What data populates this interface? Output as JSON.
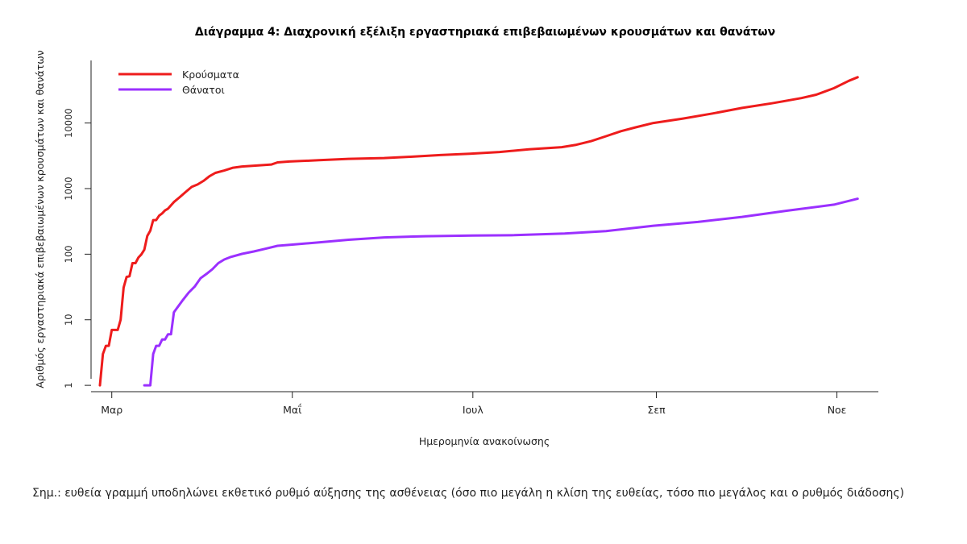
{
  "chart_data": {
    "type": "line",
    "title": "Διάγραμμα 4: Διαχρονική εξέλιξη εργαστηριακά επιβεβαιωμένων κρουσμάτων και θανάτων",
    "xlabel": "Ημερομηνία ανακοίνωσης",
    "ylabel": "Αριθμός εργαστηριακά επιβεβαιωμένων κρουσμάτων και θανάτων",
    "y_scale": "log",
    "ylim": [
      0.8,
      90000
    ],
    "yticks": [
      1,
      10,
      100,
      1000,
      10000
    ],
    "ytick_labels": [
      "1",
      "10",
      "100",
      "1000",
      "10000"
    ],
    "xlim": [
      "2020-02-23",
      "2020-11-15"
    ],
    "xticks": [
      "2020-03-01",
      "2020-05-01",
      "2020-07-01",
      "2020-09-01",
      "2020-11-01"
    ],
    "xtick_labels": [
      "Μαρ",
      "Μαΐ",
      "Ιουλ",
      "Σεπ",
      "Νοε"
    ],
    "legend_position": "top-left",
    "grid": false,
    "series": [
      {
        "name": "Κρούσματα",
        "color": "#ee1c1c",
        "points": [
          [
            "2020-02-26",
            1
          ],
          [
            "2020-02-27",
            3
          ],
          [
            "2020-02-28",
            4
          ],
          [
            "2020-02-29",
            4
          ],
          [
            "2020-03-01",
            7
          ],
          [
            "2020-03-02",
            7
          ],
          [
            "2020-03-03",
            7
          ],
          [
            "2020-03-04",
            10
          ],
          [
            "2020-03-05",
            31
          ],
          [
            "2020-03-06",
            45
          ],
          [
            "2020-03-07",
            46
          ],
          [
            "2020-03-08",
            73
          ],
          [
            "2020-03-09",
            73
          ],
          [
            "2020-03-10",
            89
          ],
          [
            "2020-03-11",
            99
          ],
          [
            "2020-03-12",
            117
          ],
          [
            "2020-03-13",
            190
          ],
          [
            "2020-03-14",
            228
          ],
          [
            "2020-03-15",
            331
          ],
          [
            "2020-03-16",
            331
          ],
          [
            "2020-03-17",
            387
          ],
          [
            "2020-03-18",
            418
          ],
          [
            "2020-03-19",
            464
          ],
          [
            "2020-03-20",
            495
          ],
          [
            "2020-03-22",
            624
          ],
          [
            "2020-03-24",
            743
          ],
          [
            "2020-03-26",
            892
          ],
          [
            "2020-03-28",
            1061
          ],
          [
            "2020-03-30",
            1156
          ],
          [
            "2020-04-01",
            1314
          ],
          [
            "2020-04-03",
            1544
          ],
          [
            "2020-04-05",
            1735
          ],
          [
            "2020-04-08",
            1884
          ],
          [
            "2020-04-11",
            2081
          ],
          [
            "2020-04-14",
            2170
          ],
          [
            "2020-04-18",
            2235
          ],
          [
            "2020-04-22",
            2300
          ],
          [
            "2020-04-24",
            2330
          ],
          [
            "2020-04-26",
            2506
          ],
          [
            "2020-04-30",
            2591
          ],
          [
            "2020-05-10",
            2710
          ],
          [
            "2020-05-20",
            2840
          ],
          [
            "2020-06-01",
            2920
          ],
          [
            "2020-06-10",
            3060
          ],
          [
            "2020-06-20",
            3250
          ],
          [
            "2020-06-30",
            3400
          ],
          [
            "2020-07-10",
            3620
          ],
          [
            "2020-07-20",
            3980
          ],
          [
            "2020-07-31",
            4280
          ],
          [
            "2020-08-05",
            4660
          ],
          [
            "2020-08-10",
            5300
          ],
          [
            "2020-08-15",
            6300
          ],
          [
            "2020-08-20",
            7500
          ],
          [
            "2020-08-25",
            8600
          ],
          [
            "2020-08-31",
            10000
          ],
          [
            "2020-09-10",
            11700
          ],
          [
            "2020-09-20",
            14000
          ],
          [
            "2020-09-30",
            17000
          ],
          [
            "2020-10-10",
            20000
          ],
          [
            "2020-10-20",
            24000
          ],
          [
            "2020-10-25",
            27000
          ],
          [
            "2020-10-31",
            34000
          ],
          [
            "2020-11-05",
            44000
          ],
          [
            "2020-11-08",
            50000
          ]
        ]
      },
      {
        "name": "Θάνατοι",
        "color": "#9b30ff",
        "points": [
          [
            "2020-03-12",
            1
          ],
          [
            "2020-03-14",
            1
          ],
          [
            "2020-03-15",
            3
          ],
          [
            "2020-03-16",
            4
          ],
          [
            "2020-03-17",
            4
          ],
          [
            "2020-03-18",
            5
          ],
          [
            "2020-03-19",
            5
          ],
          [
            "2020-03-20",
            6
          ],
          [
            "2020-03-21",
            6
          ],
          [
            "2020-03-22",
            13
          ],
          [
            "2020-03-23",
            15
          ],
          [
            "2020-03-25",
            20
          ],
          [
            "2020-03-27",
            26
          ],
          [
            "2020-03-29",
            32
          ],
          [
            "2020-03-31",
            43
          ],
          [
            "2020-04-02",
            50
          ],
          [
            "2020-04-04",
            59
          ],
          [
            "2020-04-06",
            73
          ],
          [
            "2020-04-08",
            83
          ],
          [
            "2020-04-10",
            90
          ],
          [
            "2020-04-14",
            101
          ],
          [
            "2020-04-18",
            110
          ],
          [
            "2020-04-22",
            121
          ],
          [
            "2020-04-26",
            134
          ],
          [
            "2020-05-01",
            140
          ],
          [
            "2020-05-10",
            151
          ],
          [
            "2020-05-20",
            166
          ],
          [
            "2020-06-01",
            180
          ],
          [
            "2020-06-15",
            188
          ],
          [
            "2020-07-01",
            192
          ],
          [
            "2020-07-15",
            195
          ],
          [
            "2020-08-01",
            206
          ],
          [
            "2020-08-15",
            225
          ],
          [
            "2020-08-31",
            271
          ],
          [
            "2020-09-15",
            310
          ],
          [
            "2020-09-30",
            370
          ],
          [
            "2020-10-15",
            460
          ],
          [
            "2020-10-31",
            570
          ],
          [
            "2020-11-08",
            700
          ]
        ]
      }
    ]
  },
  "note": "Σημ.: ευθεία γραμμή υποδηλώνει εκθετικό ρυθμό αύξησης της ασθένειας (όσο πιο μεγάλη η κλίση της ευθείας, τόσο πιο μεγάλος και ο ρυθμός διάδοσης)"
}
